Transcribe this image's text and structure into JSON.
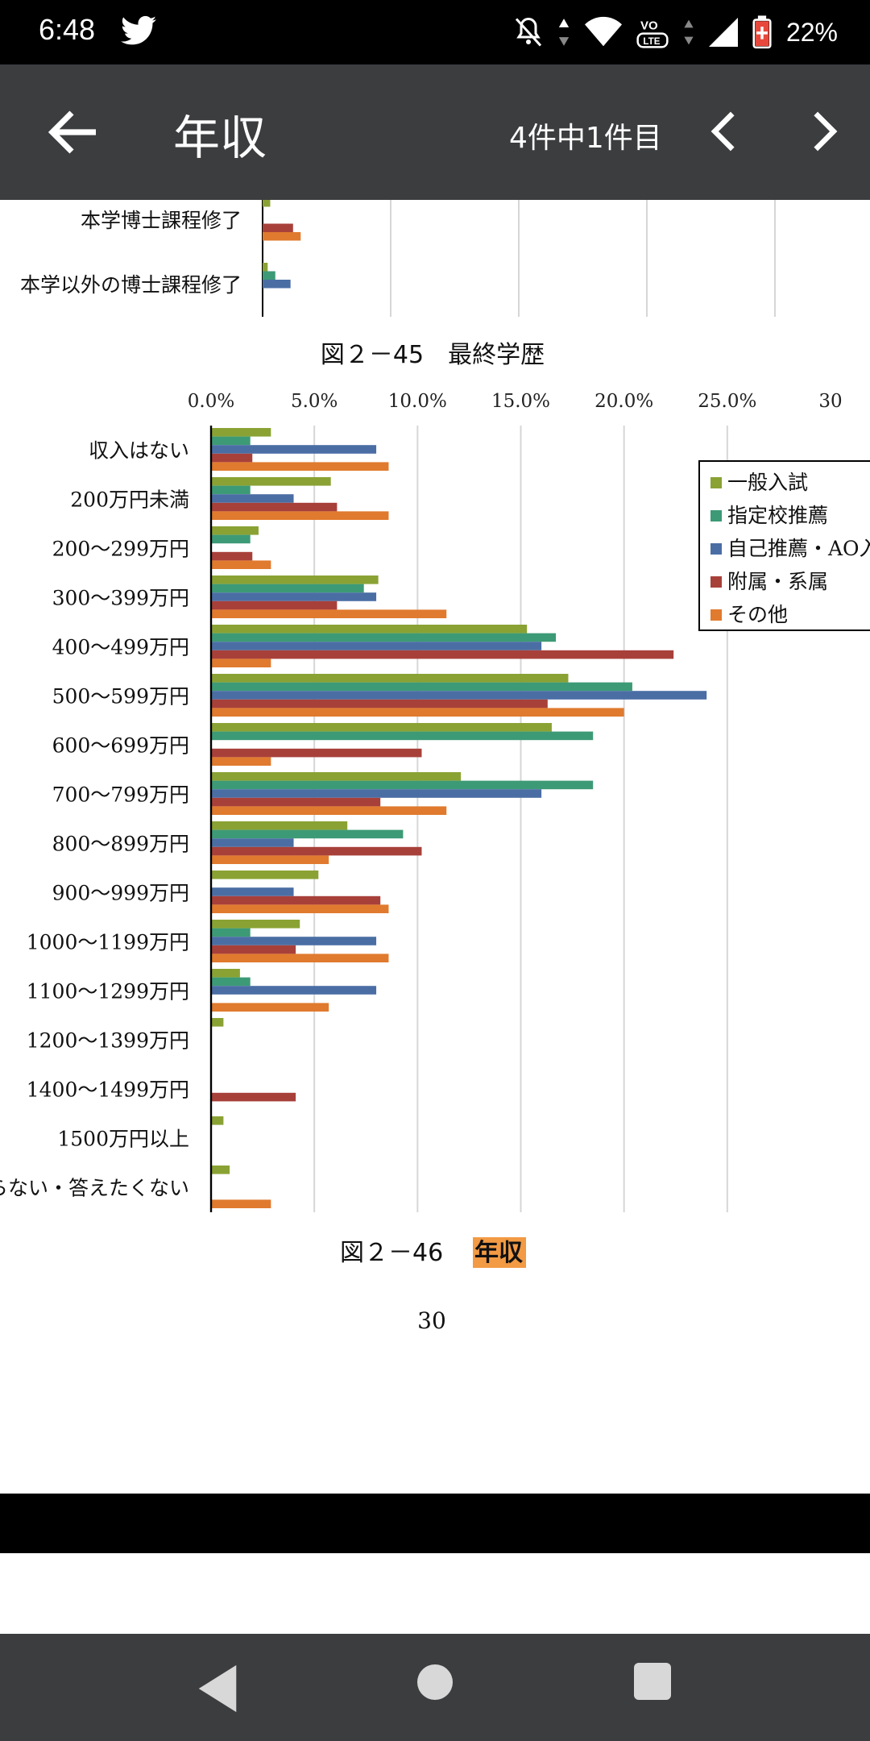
{
  "status": {
    "time": "6:48",
    "battery": "22%",
    "icons": [
      "twitter-icon",
      "notifications-off-icon",
      "data-arrows-icon",
      "wifi-icon",
      "volte-icon",
      "signal-icon",
      "battery-icon"
    ]
  },
  "toolbar": {
    "title": "年収",
    "match_count": "4件中1件目",
    "icons": [
      "back-arrow-icon",
      "chevron-left-icon",
      "chevron-right-icon"
    ]
  },
  "prev_chart": {
    "categories": [
      "本学博士課程修了",
      "本学以外の博士課程修了"
    ],
    "caption": "図２－45　最終学歴",
    "series_colors": [
      "#8aa234",
      "#3d9a76",
      "#4a6ea4",
      "#a8403a",
      "#e07a2e"
    ],
    "values": [
      [
        0.3,
        null,
        null,
        1.2,
        1.5
      ],
      [
        0.2,
        0.5,
        1.1,
        null,
        null
      ]
    ]
  },
  "chart_data": {
    "type": "bar",
    "orientation": "horizontal",
    "caption_prefix": "図２－46　",
    "caption_highlight": "年収",
    "page_number": "30",
    "xlim": [
      0,
      30
    ],
    "xticks": [
      "0.0%",
      "5.0%",
      "10.0%",
      "15.0%",
      "20.0%",
      "25.0%",
      "30"
    ],
    "categories": [
      "収入はない",
      "200万円未満",
      "200～299万円",
      "300～399万円",
      "400～499万円",
      "500～599万円",
      "600～699万円",
      "700～799万円",
      "800～899万円",
      "900～999万円",
      "1000～1199万円",
      "1100～1299万円",
      "1200～1399万円",
      "1400～1499万円",
      "1500万円以上",
      "らない・答えたくない"
    ],
    "legend_position": "right",
    "series": [
      {
        "name": "一般入試",
        "color": "#8aa234",
        "values": [
          2.9,
          5.8,
          2.3,
          8.1,
          15.3,
          17.3,
          16.5,
          12.1,
          6.6,
          5.2,
          4.3,
          1.4,
          0.6,
          0,
          0.6,
          0.9
        ]
      },
      {
        "name": "指定校推薦",
        "color": "#3d9a76",
        "values": [
          1.9,
          1.9,
          1.9,
          7.4,
          16.7,
          20.4,
          18.5,
          18.5,
          9.3,
          0,
          1.9,
          1.9,
          0,
          0,
          0,
          0
        ]
      },
      {
        "name": "自己推薦・AO入",
        "color": "#4a6ea4",
        "values": [
          8.0,
          4.0,
          0,
          8.0,
          16.0,
          24.0,
          0,
          16.0,
          4.0,
          4.0,
          8.0,
          8.0,
          0,
          0,
          0,
          0
        ]
      },
      {
        "name": "附属・系属",
        "color": "#a8403a",
        "values": [
          2.0,
          6.1,
          2.0,
          6.1,
          22.4,
          16.3,
          10.2,
          8.2,
          10.2,
          8.2,
          4.1,
          0,
          0,
          4.1,
          0,
          0
        ]
      },
      {
        "name": "その他",
        "color": "#e07a2e",
        "values": [
          8.6,
          8.6,
          2.9,
          11.4,
          2.9,
          20.0,
          2.9,
          11.4,
          5.7,
          8.6,
          8.6,
          5.7,
          0,
          0,
          0,
          2.9
        ]
      }
    ]
  }
}
